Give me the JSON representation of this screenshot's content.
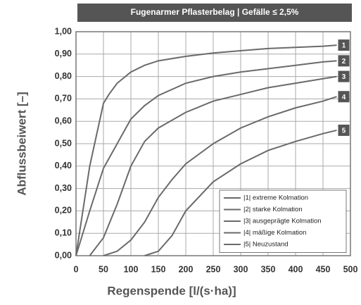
{
  "chart_data": {
    "type": "line",
    "title": "Fugenarmer Pflasterbelag  |  Gefälle ≤ 2,5%",
    "x_label": "Regenspende [l/(s·ha)]",
    "y_label": "Abflussbeiwert [–]",
    "xlim": [
      0,
      500
    ],
    "xticks": [
      0,
      50,
      100,
      150,
      200,
      250,
      300,
      350,
      400,
      450,
      500
    ],
    "ylim": [
      0,
      1
    ],
    "yticks": [
      {
        "value": 0,
        "label": "0,00"
      },
      {
        "value": 0.1,
        "label": "0,10"
      },
      {
        "value": 0.2,
        "label": "0,20"
      },
      {
        "value": 0.3,
        "label": "0,30"
      },
      {
        "value": 0.4,
        "label": "0,40"
      },
      {
        "value": 0.5,
        "label": "0,50"
      },
      {
        "value": 0.6,
        "label": "0,60"
      },
      {
        "value": 0.7,
        "label": "0,70"
      },
      {
        "value": 0.8,
        "label": "0,80"
      },
      {
        "value": 0.9,
        "label": "0,90"
      },
      {
        "value": 1,
        "label": "1,00"
      }
    ],
    "grid": true,
    "legend": "lower right",
    "labels": [
      "1",
      "2",
      "3",
      "4",
      "5"
    ],
    "series": [
      {
        "name": "|1|  extreme Kolmation",
        "color": "#6a6a6a",
        "x": [
          0,
          25,
          50,
          60,
          75,
          100,
          125,
          150,
          200,
          250,
          300,
          350,
          400,
          450,
          475
        ],
        "values": [
          0,
          0.4,
          0.68,
          0.72,
          0.77,
          0.82,
          0.85,
          0.87,
          0.89,
          0.905,
          0.915,
          0.925,
          0.93,
          0.935,
          0.94
        ]
      },
      {
        "name": "|2|  starke Kolmation",
        "color": "#6a6a6a",
        "x": [
          0,
          25,
          50,
          75,
          100,
          125,
          150,
          200,
          250,
          300,
          350,
          400,
          450,
          475
        ],
        "values": [
          0,
          0.2,
          0.39,
          0.5,
          0.61,
          0.67,
          0.715,
          0.77,
          0.8,
          0.82,
          0.835,
          0.85,
          0.865,
          0.87
        ]
      },
      {
        "name": "|3|  ausgeprägte Kolmation",
        "color": "#6a6a6a",
        "x": [
          25,
          50,
          75,
          100,
          125,
          150,
          200,
          250,
          300,
          350,
          400,
          450,
          475
        ],
        "values": [
          0,
          0.08,
          0.23,
          0.4,
          0.51,
          0.57,
          0.64,
          0.69,
          0.72,
          0.75,
          0.77,
          0.79,
          0.8
        ]
      },
      {
        "name": "|4|  mäßige Kolmation",
        "color": "#6a6a6a",
        "x": [
          50,
          75,
          100,
          125,
          150,
          175,
          200,
          250,
          300,
          350,
          400,
          450,
          475
        ],
        "values": [
          0,
          0.02,
          0.07,
          0.15,
          0.26,
          0.34,
          0.41,
          0.5,
          0.57,
          0.62,
          0.66,
          0.69,
          0.71
        ]
      },
      {
        "name": "|5|  Neuzustand",
        "color": "#6a6a6a",
        "x": [
          125,
          150,
          175,
          200,
          250,
          300,
          350,
          400,
          450,
          475
        ],
        "values": [
          0,
          0.02,
          0.09,
          0.2,
          0.33,
          0.41,
          0.47,
          0.51,
          0.545,
          0.56
        ]
      }
    ]
  }
}
